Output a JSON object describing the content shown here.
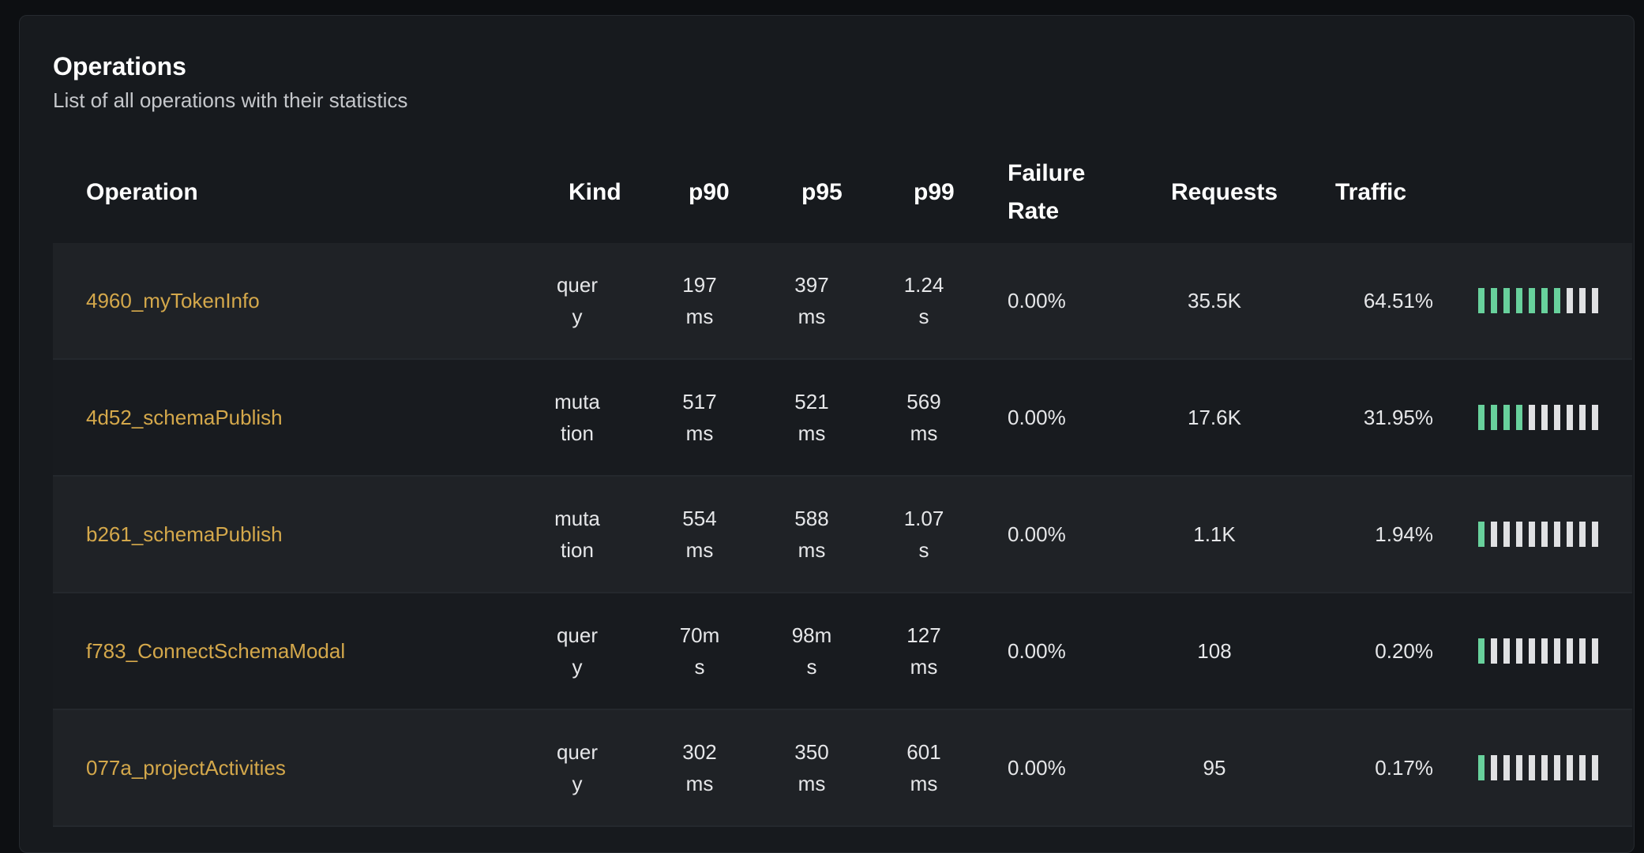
{
  "panel": {
    "title": "Operations",
    "subtitle": "List of all operations with their statistics"
  },
  "columns": {
    "operation": "Operation",
    "kind": "Kind",
    "p90": "p90",
    "p95": "p95",
    "p99": "p99",
    "failure_rate": "Failure Rate",
    "requests": "Requests",
    "traffic": "Traffic"
  },
  "colors": {
    "operation_name": "#d4a84b",
    "traffic_bar_filled": "#68d19c",
    "traffic_bar_empty": "#e0e1e3"
  },
  "rows": [
    {
      "operation": "4960_myTokenInfo",
      "kind": "query",
      "p90": "197 ms",
      "p95": "397 ms",
      "p99": "1.24 s",
      "failure_rate": "0.00%",
      "requests": "35.5K",
      "traffic": "64.51%",
      "traffic_pct": 64.51
    },
    {
      "operation": "4d52_schemaPublish",
      "kind": "mutation",
      "p90": "517 ms",
      "p95": "521 ms",
      "p99": "569 ms",
      "failure_rate": "0.00%",
      "requests": "17.6K",
      "traffic": "31.95%",
      "traffic_pct": 31.95
    },
    {
      "operation": "b261_schemaPublish",
      "kind": "mutation",
      "p90": "554 ms",
      "p95": "588 ms",
      "p99": "1.07 s",
      "failure_rate": "0.00%",
      "requests": "1.1K",
      "traffic": "1.94%",
      "traffic_pct": 1.94
    },
    {
      "operation": "f783_ConnectSchemaModal",
      "kind": "query",
      "p90": "70ms",
      "p95": "98ms",
      "p99": "127 ms",
      "failure_rate": "0.00%",
      "requests": "108",
      "traffic": "0.20%",
      "traffic_pct": 0.2
    },
    {
      "operation": "077a_projectActivities",
      "kind": "query",
      "p90": "302 ms",
      "p95": "350 ms",
      "p99": "601 ms",
      "failure_rate": "0.00%",
      "requests": "95",
      "traffic": "0.17%",
      "traffic_pct": 0.17
    }
  ]
}
